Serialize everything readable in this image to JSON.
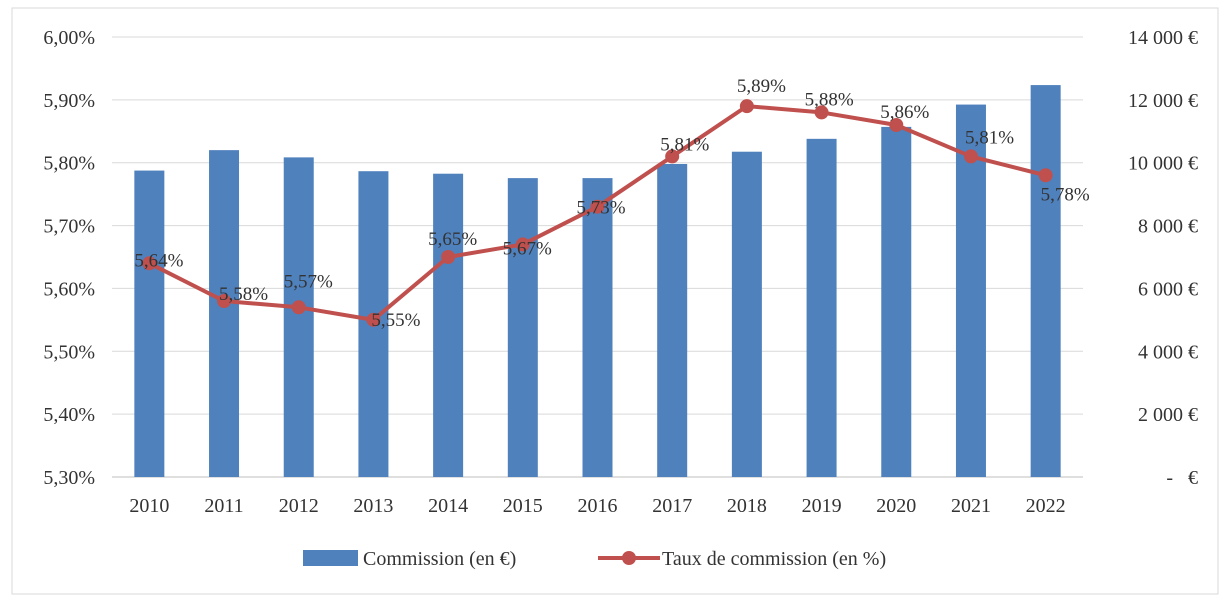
{
  "chart_data": {
    "type": "bar",
    "categories": [
      "2010",
      "2011",
      "2012",
      "2013",
      "2014",
      "2015",
      "2016",
      "2017",
      "2018",
      "2019",
      "2020",
      "2021",
      "2022"
    ],
    "series": [
      {
        "name": "Commission (en €)",
        "type": "bar",
        "axis": "right",
        "color": "#4f81bd",
        "values": [
          9750,
          10400,
          10170,
          9730,
          9650,
          9510,
          9510,
          9960,
          10350,
          10760,
          11140,
          11850,
          12470
        ]
      },
      {
        "name": "Taux de commission (en %)",
        "type": "line",
        "axis": "left",
        "color": "#c0504d",
        "values": [
          5.64,
          5.58,
          5.57,
          5.55,
          5.65,
          5.67,
          5.73,
          5.81,
          5.89,
          5.88,
          5.86,
          5.81,
          5.78
        ],
        "labels": [
          "5,64%",
          "5,58%",
          "5,57%",
          "5,55%",
          "5,65%",
          "5,67%",
          "5,73%",
          "5,81%",
          "5,89%",
          "5,88%",
          "5,86%",
          "5,81%",
          "5,78%"
        ]
      }
    ],
    "y_left": {
      "ylim": [
        5.3,
        6.0
      ],
      "tick_values": [
        5.3,
        5.4,
        5.5,
        5.6,
        5.7,
        5.8,
        5.9,
        6.0
      ],
      "tick_labels": [
        "5,30%",
        "5,40%",
        "5,50%",
        "5,60%",
        "5,70%",
        "5,80%",
        "5,90%",
        "6,00%"
      ]
    },
    "y_right": {
      "ylim": [
        0,
        14000
      ],
      "tick_values": [
        0,
        2000,
        4000,
        6000,
        8000,
        10000,
        12000,
        14000
      ],
      "tick_labels": [
        "-   €",
        "2 000 €",
        "4 000 €",
        "6 000 €",
        "8 000 €",
        "10 000 €",
        "12 000 €",
        "14 000 €"
      ]
    },
    "grid": true,
    "legend": "bottom"
  }
}
